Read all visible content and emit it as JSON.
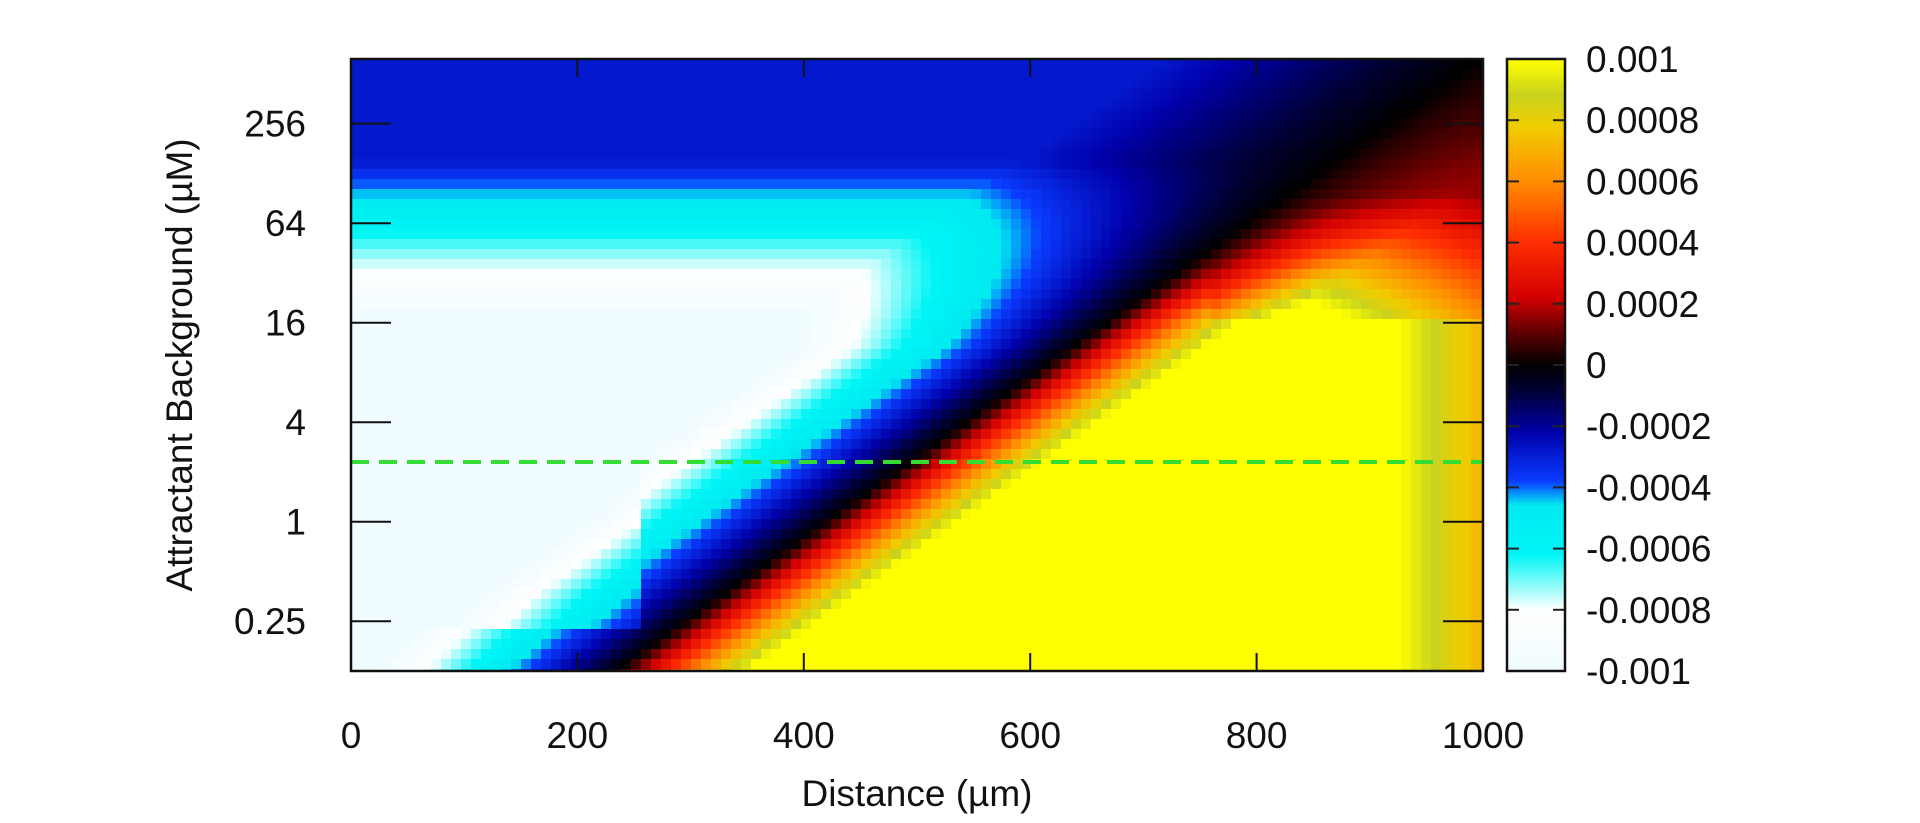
{
  "chart_data": {
    "type": "heatmap",
    "title": "",
    "xlabel": "Distance (µm)",
    "ylabel": "Attractant Background (µM)",
    "xlim": [
      0,
      1000
    ],
    "ylim_log2": [
      -3,
      9.3
    ],
    "yscale": "log2",
    "x_ticks": [
      0,
      200,
      400,
      600,
      800,
      1000
    ],
    "x_tick_labels": [
      "0",
      "200",
      "400",
      "600",
      "800",
      "1000"
    ],
    "y_ticks": [
      0.25,
      1,
      4,
      16,
      64,
      256
    ],
    "y_tick_labels": [
      "0.25",
      "1",
      "4",
      "16",
      "64",
      "256"
    ],
    "colorbar": {
      "min": -0.001,
      "max": 0.001,
      "ticks": [
        0.001,
        0.0008,
        0.0006,
        0.0004,
        0.0002,
        0,
        -0.0002,
        -0.0004,
        -0.0006,
        -0.0008,
        -0.001
      ],
      "tick_labels": [
        "0.001",
        "0.0008",
        "0.0006",
        "0.0004",
        "0.0002",
        "0",
        "-0.0002",
        "-0.0004",
        "-0.0006",
        "-0.0008",
        "-0.001"
      ]
    },
    "reference_line": {
      "style": "dashed",
      "color": "#33dd33",
      "y_value": 2.3
    },
    "field_description": "Value > 0 to the right of diagonal x ≈ 420 + 62·log2(y) (positive lobe peaking near x 460–840 for y ≤ 16); value < 0 to the left (negative lobe strongest near x 0–350 for y 0.25–8)"
  },
  "colors": {
    "reference_line": "#33dd33",
    "frame": "#111111"
  }
}
